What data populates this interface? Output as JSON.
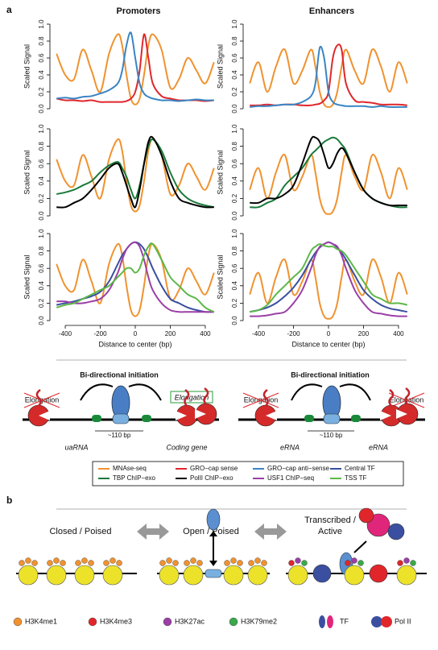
{
  "panel_labels": [
    "a",
    "b"
  ],
  "column_titles": [
    "Promoters",
    "Enhancers"
  ],
  "chart_data": [
    {
      "type": "line",
      "ylabel": "Scaled Signal",
      "x": [
        -450,
        -400,
        -350,
        -300,
        -250,
        -200,
        -150,
        -100,
        -75,
        -50,
        -25,
        0,
        25,
        50,
        75,
        100,
        150,
        200,
        250,
        300,
        350,
        400,
        450
      ],
      "xlim": [
        -460,
        460
      ],
      "ylim": [
        0,
        1
      ],
      "yticks": [
        {
          "value": 0,
          "label": "0.0"
        },
        0.2,
        0.4,
        0.6,
        0.8,
        {
          "value": 1,
          "label": "1.0"
        }
      ],
      "series": [
        {
          "name": "MNAse-seq",
          "color": "#f0922f",
          "values": [
            0.65,
            0.4,
            0.35,
            0.7,
            0.45,
            0.2,
            0.65,
            0.88,
            0.75,
            0.4,
            0.12,
            0.05,
            0.12,
            0.4,
            0.75,
            0.88,
            0.7,
            0.25,
            0.35,
            0.6,
            0.45,
            0.3,
            0.55
          ]
        },
        {
          "name": "GRO−cap sense",
          "color": "#e0262b",
          "values": [
            0.12,
            0.1,
            0.1,
            0.09,
            0.1,
            0.08,
            0.08,
            0.08,
            0.08,
            0.09,
            0.12,
            0.2,
            0.45,
            0.88,
            0.6,
            0.3,
            0.15,
            0.12,
            0.1,
            0.1,
            0.1,
            0.09,
            0.1
          ]
        },
        {
          "name": "GRO−cap anti−sense",
          "color": "#3a85c4",
          "values": [
            0.12,
            0.13,
            0.12,
            0.14,
            0.15,
            0.18,
            0.22,
            0.3,
            0.45,
            0.75,
            0.9,
            0.6,
            0.3,
            0.18,
            0.14,
            0.12,
            0.1,
            0.1,
            0.09,
            0.1,
            0.11,
            0.1,
            0.1
          ]
        }
      ]
    },
    {
      "type": "line",
      "ylabel": "Scaled Signal",
      "x": [
        -450,
        -400,
        -350,
        -300,
        -250,
        -200,
        -150,
        -100,
        -75,
        -50,
        -25,
        0,
        25,
        50,
        75,
        100,
        150,
        200,
        250,
        300,
        350,
        400,
        450
      ],
      "xlim": [
        -460,
        460
      ],
      "ylim": [
        0,
        1
      ],
      "yticks": [
        {
          "value": 0,
          "label": "0.0"
        },
        0.2,
        0.4,
        0.6,
        0.8,
        {
          "value": 1,
          "label": "1.0"
        }
      ],
      "series": [
        {
          "name": "MNAse-seq",
          "color": "#f0922f",
          "values": [
            0.3,
            0.55,
            0.2,
            0.5,
            0.7,
            0.3,
            0.45,
            0.7,
            0.5,
            0.2,
            0.05,
            0.02,
            0.05,
            0.2,
            0.5,
            0.7,
            0.45,
            0.3,
            0.7,
            0.5,
            0.2,
            0.55,
            0.3
          ]
        },
        {
          "name": "GRO−cap sense",
          "color": "#e0262b",
          "values": [
            0.04,
            0.04,
            0.05,
            0.04,
            0.05,
            0.05,
            0.04,
            0.04,
            0.05,
            0.06,
            0.1,
            0.2,
            0.6,
            0.75,
            0.7,
            0.3,
            0.1,
            0.08,
            0.07,
            0.05,
            0.05,
            0.05,
            0.04
          ]
        },
        {
          "name": "GRO−cap anti−sense",
          "color": "#3a85c4",
          "values": [
            0.02,
            0.03,
            0.03,
            0.04,
            0.05,
            0.05,
            0.08,
            0.15,
            0.3,
            0.72,
            0.6,
            0.2,
            0.08,
            0.05,
            0.04,
            0.03,
            0.03,
            0.03,
            0.02,
            0.03,
            0.02,
            0.02,
            0.02
          ]
        }
      ]
    },
    {
      "type": "line",
      "ylabel": "Scaled Signal",
      "x": [
        -450,
        -400,
        -350,
        -300,
        -250,
        -200,
        -150,
        -100,
        -75,
        -50,
        -25,
        0,
        25,
        50,
        75,
        100,
        150,
        200,
        250,
        300,
        350,
        400,
        450
      ],
      "xlim": [
        -460,
        460
      ],
      "ylim": [
        0,
        1
      ],
      "yticks": [
        {
          "value": 0,
          "label": "0.0"
        },
        0.2,
        0.4,
        0.6,
        0.8,
        {
          "value": 1,
          "label": "1.0"
        }
      ],
      "series": [
        {
          "name": "MNAse-seq",
          "color": "#f0922f",
          "values": [
            0.65,
            0.4,
            0.35,
            0.7,
            0.45,
            0.2,
            0.65,
            0.88,
            0.75,
            0.4,
            0.12,
            0.05,
            0.12,
            0.4,
            0.75,
            0.88,
            0.7,
            0.25,
            0.35,
            0.6,
            0.45,
            0.3,
            0.55
          ]
        },
        {
          "name": "TBP ChIP−exo",
          "color": "#1a7a3a",
          "values": [
            0.25,
            0.27,
            0.3,
            0.35,
            0.4,
            0.5,
            0.58,
            0.62,
            0.55,
            0.45,
            0.3,
            0.2,
            0.35,
            0.6,
            0.8,
            0.88,
            0.75,
            0.5,
            0.3,
            0.2,
            0.15,
            0.12,
            0.1
          ]
        },
        {
          "name": "PolII ChIP−exo",
          "color": "#000000",
          "values": [
            0.1,
            0.1,
            0.15,
            0.2,
            0.3,
            0.42,
            0.55,
            0.6,
            0.5,
            0.35,
            0.2,
            0.1,
            0.3,
            0.6,
            0.85,
            0.9,
            0.7,
            0.4,
            0.2,
            0.15,
            0.12,
            0.1,
            0.1
          ]
        }
      ]
    },
    {
      "type": "line",
      "ylabel": "Scaled Signal",
      "x": [
        -450,
        -400,
        -350,
        -300,
        -250,
        -200,
        -150,
        -100,
        -75,
        -50,
        -25,
        0,
        25,
        50,
        75,
        100,
        150,
        200,
        250,
        300,
        350,
        400,
        450
      ],
      "xlim": [
        -460,
        460
      ],
      "ylim": [
        0,
        1
      ],
      "yticks": [
        {
          "value": 0,
          "label": "0.0"
        },
        0.2,
        0.4,
        0.6,
        0.8,
        {
          "value": 1,
          "label": "1.0"
        }
      ],
      "series": [
        {
          "name": "MNAse-seq",
          "color": "#f0922f",
          "values": [
            0.3,
            0.55,
            0.2,
            0.5,
            0.7,
            0.3,
            0.45,
            0.7,
            0.5,
            0.2,
            0.05,
            0.02,
            0.05,
            0.2,
            0.5,
            0.7,
            0.45,
            0.3,
            0.7,
            0.5,
            0.2,
            0.55,
            0.3
          ]
        },
        {
          "name": "TBP ChIP−exo",
          "color": "#1a7a3a",
          "values": [
            0.1,
            0.1,
            0.15,
            0.2,
            0.35,
            0.45,
            0.55,
            0.7,
            0.75,
            0.8,
            0.85,
            0.88,
            0.9,
            0.88,
            0.82,
            0.75,
            0.5,
            0.3,
            0.2,
            0.15,
            0.12,
            0.1,
            0.1
          ]
        },
        {
          "name": "PolII ChIP−exo",
          "color": "#000000",
          "values": [
            0.15,
            0.15,
            0.2,
            0.2,
            0.25,
            0.35,
            0.6,
            0.88,
            0.9,
            0.85,
            0.7,
            0.55,
            0.6,
            0.72,
            0.78,
            0.72,
            0.5,
            0.3,
            0.2,
            0.15,
            0.12,
            0.12,
            0.12
          ]
        }
      ]
    },
    {
      "type": "line",
      "ylabel": "Scaled Signal",
      "xlabel": "Distance to center (bp)",
      "x": [
        -450,
        -400,
        -350,
        -300,
        -250,
        -200,
        -150,
        -100,
        -75,
        -50,
        -25,
        0,
        25,
        50,
        75,
        100,
        150,
        200,
        250,
        300,
        350,
        400,
        450
      ],
      "xlim": [
        -460,
        460
      ],
      "ylim": [
        0,
        1
      ],
      "xticks": [
        -400,
        -200,
        0,
        200,
        400
      ],
      "yticks": [
        {
          "value": 0,
          "label": "0.0"
        },
        0.2,
        0.4,
        0.6,
        0.8,
        {
          "value": 1,
          "label": "1.0"
        }
      ],
      "series": [
        {
          "name": "MNAse-seq",
          "color": "#f0922f",
          "values": [
            0.65,
            0.4,
            0.35,
            0.7,
            0.45,
            0.2,
            0.65,
            0.88,
            0.75,
            0.4,
            0.12,
            0.05,
            0.12,
            0.4,
            0.75,
            0.88,
            0.7,
            0.25,
            0.35,
            0.6,
            0.45,
            0.3,
            0.55
          ]
        },
        {
          "name": "Central TF",
          "color": "#3a4fa0",
          "values": [
            0.18,
            0.2,
            0.22,
            0.25,
            0.28,
            0.33,
            0.45,
            0.65,
            0.75,
            0.82,
            0.88,
            0.9,
            0.88,
            0.82,
            0.72,
            0.6,
            0.4,
            0.25,
            0.2,
            0.15,
            0.12,
            0.1,
            0.1
          ]
        },
        {
          "name": "USF1 ChIP−seq",
          "color": "#9b3fa6",
          "values": [
            0.22,
            0.22,
            0.2,
            0.2,
            0.22,
            0.25,
            0.35,
            0.55,
            0.7,
            0.82,
            0.88,
            0.9,
            0.85,
            0.7,
            0.5,
            0.35,
            0.2,
            0.12,
            0.1,
            0.1,
            0.1,
            0.1,
            0.1
          ]
        },
        {
          "name": "TSS TF",
          "color": "#5cb848",
          "values": [
            0.15,
            0.18,
            0.2,
            0.25,
            0.3,
            0.35,
            0.4,
            0.5,
            0.55,
            0.6,
            0.6,
            0.55,
            0.6,
            0.75,
            0.85,
            0.88,
            0.7,
            0.5,
            0.4,
            0.3,
            0.25,
            0.15,
            0.1
          ]
        }
      ]
    },
    {
      "type": "line",
      "ylabel": "Scaled Signal",
      "xlabel": "Distance to center (bp)",
      "x": [
        -450,
        -400,
        -350,
        -300,
        -250,
        -200,
        -150,
        -100,
        -75,
        -50,
        -25,
        0,
        25,
        50,
        75,
        100,
        150,
        200,
        250,
        300,
        350,
        400,
        450
      ],
      "xlim": [
        -460,
        460
      ],
      "ylim": [
        0,
        1
      ],
      "xticks": [
        -400,
        -200,
        0,
        200,
        400
      ],
      "yticks": [
        {
          "value": 0,
          "label": "0.0"
        },
        0.2,
        0.4,
        0.6,
        0.8,
        {
          "value": 1,
          "label": "1.0"
        }
      ],
      "series": [
        {
          "name": "MNAse-seq",
          "color": "#f0922f",
          "values": [
            0.3,
            0.55,
            0.2,
            0.5,
            0.7,
            0.3,
            0.45,
            0.7,
            0.5,
            0.2,
            0.05,
            0.02,
            0.05,
            0.2,
            0.5,
            0.7,
            0.45,
            0.3,
            0.7,
            0.5,
            0.2,
            0.55,
            0.3
          ]
        },
        {
          "name": "Central TF",
          "color": "#3a4fa0",
          "values": [
            0.1,
            0.12,
            0.15,
            0.2,
            0.28,
            0.38,
            0.52,
            0.7,
            0.78,
            0.84,
            0.88,
            0.9,
            0.88,
            0.84,
            0.78,
            0.7,
            0.52,
            0.35,
            0.25,
            0.18,
            0.14,
            0.12,
            0.1
          ]
        },
        {
          "name": "USF1 ChIP−seq",
          "color": "#9b3fa6",
          "values": [
            0.05,
            0.05,
            0.06,
            0.08,
            0.1,
            0.2,
            0.35,
            0.6,
            0.75,
            0.85,
            0.88,
            0.9,
            0.88,
            0.85,
            0.75,
            0.6,
            0.35,
            0.2,
            0.1,
            0.08,
            0.06,
            0.05,
            0.05
          ]
        },
        {
          "name": "TSS TF",
          "color": "#5cb848",
          "values": [
            0.1,
            0.12,
            0.18,
            0.3,
            0.4,
            0.5,
            0.6,
            0.8,
            0.85,
            0.88,
            0.86,
            0.85,
            0.85,
            0.82,
            0.8,
            0.75,
            0.6,
            0.45,
            0.3,
            0.25,
            0.2,
            0.2,
            0.18
          ]
        }
      ]
    }
  ],
  "diagram": {
    "titles": [
      "Bi-directional initiation",
      "Bi-directional initiation"
    ],
    "elongation": [
      "Elongation",
      "Elongation",
      "Elongation",
      "Elongation"
    ],
    "spacing": [
      "~110 bp",
      "~110 bp"
    ],
    "rna_labels": [
      "uaRNA",
      "Coding gene",
      "eRNA",
      "eRNA"
    ]
  },
  "panel_b": {
    "states": [
      "Closed / Poised",
      "Open / Poised",
      "Transcribed /",
      "Active"
    ],
    "legend": [
      "H3K4me1",
      "H3K4me3",
      "H3K27ac",
      "H3K79me2",
      "TF",
      "Pol II"
    ]
  }
}
